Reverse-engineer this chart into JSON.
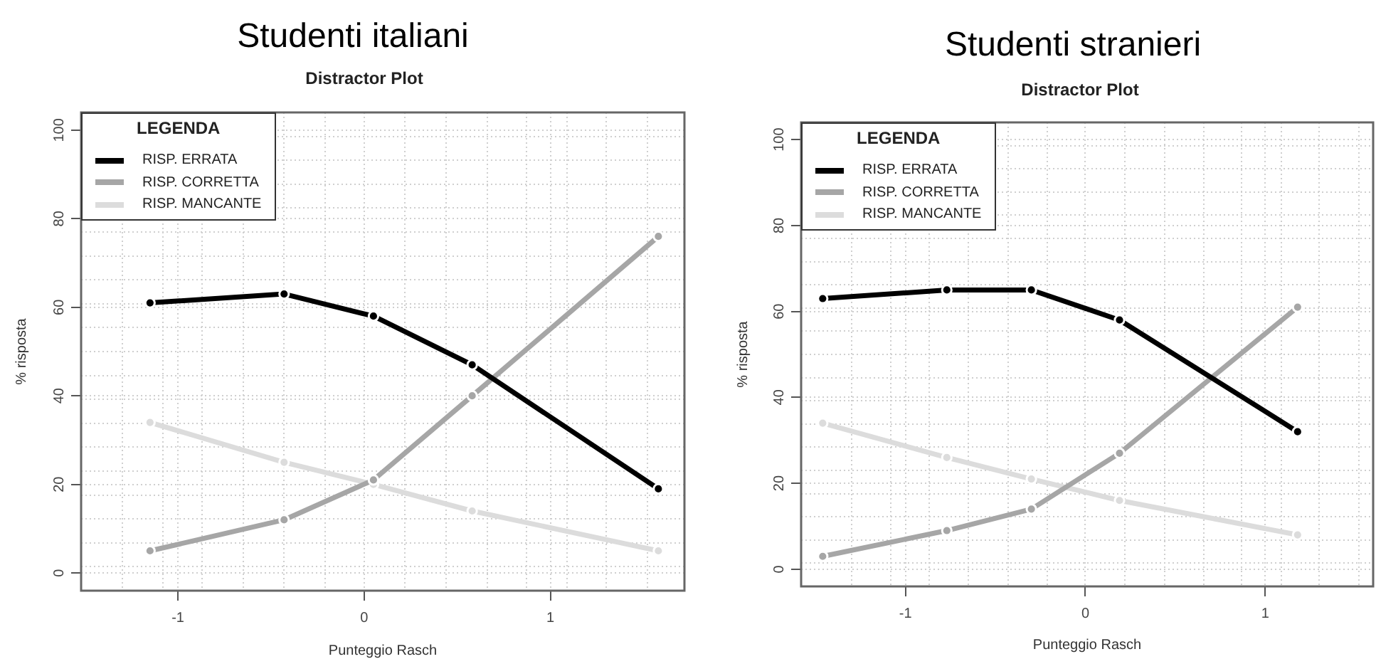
{
  "chart_data": [
    {
      "type": "line",
      "title": "Studenti italiani",
      "subtitle": "Distractor Plot",
      "xlabel": "Punteggio Rasch",
      "ylabel": "% risposta",
      "legend_title": "LEGENDA",
      "x": [
        -1.15,
        -0.43,
        0.05,
        0.58,
        1.58
      ],
      "series": [
        {
          "name": "RISP. ERRATA",
          "color": "#000000",
          "values": [
            61,
            63,
            58,
            47,
            19
          ]
        },
        {
          "name": "RISP. CORRETTA",
          "color": "#a6a6a6",
          "values": [
            5,
            12,
            21,
            40,
            76
          ]
        },
        {
          "name": "RISP. MANCANTE",
          "color": "#dcdcdc",
          "values": [
            34,
            25,
            20,
            14,
            5
          ]
        }
      ],
      "xlim": [
        -1.52,
        1.72
      ],
      "ylim": [
        -4,
        104
      ],
      "xticks": [
        {
          "value": -1.3,
          "label": null
        },
        {
          "value": -1.08,
          "label": null
        },
        -1,
        {
          "value": -0.87,
          "label": null
        },
        {
          "value": -0.65,
          "label": null
        },
        {
          "value": -0.43,
          "label": null
        },
        {
          "value": -0.21,
          "label": null
        },
        0,
        {
          "value": 0.22,
          "label": null
        },
        {
          "value": 0.44,
          "label": null
        },
        {
          "value": 0.66,
          "label": null
        },
        {
          "value": 0.87,
          "label": null
        },
        1,
        {
          "value": 1.09,
          "label": null
        },
        {
          "value": 1.3,
          "label": null
        },
        {
          "value": 1.52,
          "label": null
        }
      ],
      "yticks": [
        0,
        {
          "value": 1.4,
          "label": null
        },
        {
          "value": 6.8,
          "label": null
        },
        {
          "value": 12.2,
          "label": null
        },
        {
          "value": 17.6,
          "label": null
        },
        20,
        {
          "value": 23,
          "label": null
        },
        {
          "value": 28.4,
          "label": null
        },
        {
          "value": 33.8,
          "label": null
        },
        {
          "value": 39.2,
          "label": null
        },
        40,
        {
          "value": 44.6,
          "label": null
        },
        {
          "value": 50,
          "label": null
        },
        {
          "value": 55.4,
          "label": null
        },
        60,
        {
          "value": 60.8,
          "label": null
        },
        {
          "value": 66.2,
          "label": null
        },
        {
          "value": 71.6,
          "label": null
        },
        {
          "value": 77,
          "label": null
        },
        80,
        {
          "value": 82.4,
          "label": null
        },
        {
          "value": 87.8,
          "label": null
        },
        {
          "value": 93.2,
          "label": null
        },
        {
          "value": 98.6,
          "label": null
        },
        100
      ],
      "grid": true,
      "legend": "top left",
      "marker": "circle"
    },
    {
      "type": "line",
      "title": "Studenti stranieri",
      "subtitle": "Distractor Plot",
      "xlabel": "Punteggio Rasch",
      "ylabel": "% risposta",
      "legend_title": "LEGENDA",
      "x": [
        -1.46,
        -0.77,
        -0.3,
        0.19,
        1.18
      ],
      "series": [
        {
          "name": "RISP. ERRATA",
          "color": "#000000",
          "values": [
            63,
            65,
            65,
            58,
            32
          ]
        },
        {
          "name": "RISP. CORRETTA",
          "color": "#a6a6a6",
          "values": [
            3,
            9,
            14,
            27,
            61
          ]
        },
        {
          "name": "RISP. MANCANTE",
          "color": "#dcdcdc",
          "values": [
            34,
            26,
            21,
            16,
            8
          ]
        }
      ],
      "xlim": [
        -1.58,
        1.6
      ],
      "ylim": [
        -4,
        104
      ],
      "xticks": [
        {
          "value": -1.3,
          "label": null
        },
        {
          "value": -1.08,
          "label": null
        },
        -1,
        {
          "value": -0.87,
          "label": null
        },
        {
          "value": -0.65,
          "label": null
        },
        {
          "value": -0.43,
          "label": null
        },
        {
          "value": -0.21,
          "label": null
        },
        0,
        {
          "value": 0.22,
          "label": null
        },
        {
          "value": 0.44,
          "label": null
        },
        {
          "value": 0.66,
          "label": null
        },
        {
          "value": 0.87,
          "label": null
        },
        1,
        {
          "value": 1.09,
          "label": null
        },
        {
          "value": 1.3,
          "label": null
        },
        {
          "value": 1.52,
          "label": null
        }
      ],
      "yticks": [
        0,
        {
          "value": 1.4,
          "label": null
        },
        {
          "value": 6.8,
          "label": null
        },
        {
          "value": 12.2,
          "label": null
        },
        {
          "value": 17.6,
          "label": null
        },
        20,
        {
          "value": 23,
          "label": null
        },
        {
          "value": 28.4,
          "label": null
        },
        {
          "value": 33.8,
          "label": null
        },
        {
          "value": 39.2,
          "label": null
        },
        40,
        {
          "value": 44.6,
          "label": null
        },
        {
          "value": 50,
          "label": null
        },
        {
          "value": 55.4,
          "label": null
        },
        60,
        {
          "value": 60.8,
          "label": null
        },
        {
          "value": 66.2,
          "label": null
        },
        {
          "value": 71.6,
          "label": null
        },
        {
          "value": 77,
          "label": null
        },
        80,
        {
          "value": 82.4,
          "label": null
        },
        {
          "value": 87.8,
          "label": null
        },
        {
          "value": 93.2,
          "label": null
        },
        {
          "value": 98.6,
          "label": null
        },
        100
      ],
      "grid": true,
      "legend": "top left",
      "marker": "circle"
    }
  ]
}
